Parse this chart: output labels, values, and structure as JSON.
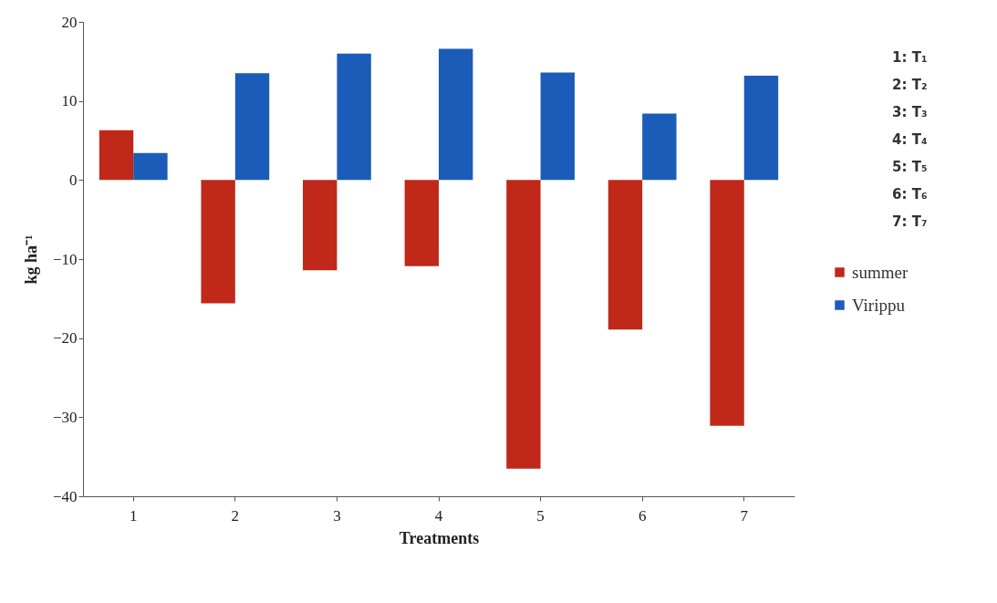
{
  "chart_data": {
    "type": "bar",
    "xlabel": "Treatments",
    "ylabel": "kg ha⁻¹",
    "categories": [
      "1",
      "2",
      "3",
      "4",
      "5",
      "6",
      "7"
    ],
    "series": [
      {
        "name": "summer",
        "color": "#c0281a",
        "values": [
          6.3,
          -15.6,
          -11.4,
          -10.9,
          -36.5,
          -18.9,
          -31.1
        ]
      },
      {
        "name": "Virippu",
        "color": "#1a5cb8",
        "values": [
          3.4,
          13.5,
          16.0,
          16.6,
          13.6,
          8.4,
          13.2
        ]
      }
    ],
    "ylim": [
      -40,
      20
    ],
    "yticks": [
      -40,
      -30,
      -20,
      -10,
      0,
      10,
      20
    ],
    "grid": false,
    "legend": "right",
    "annotations": [
      "1: T₁",
      "2: T₂",
      "3: T₃",
      "4: T₄",
      "5: T₅",
      "6: T₆",
      "7: T₇"
    ]
  }
}
